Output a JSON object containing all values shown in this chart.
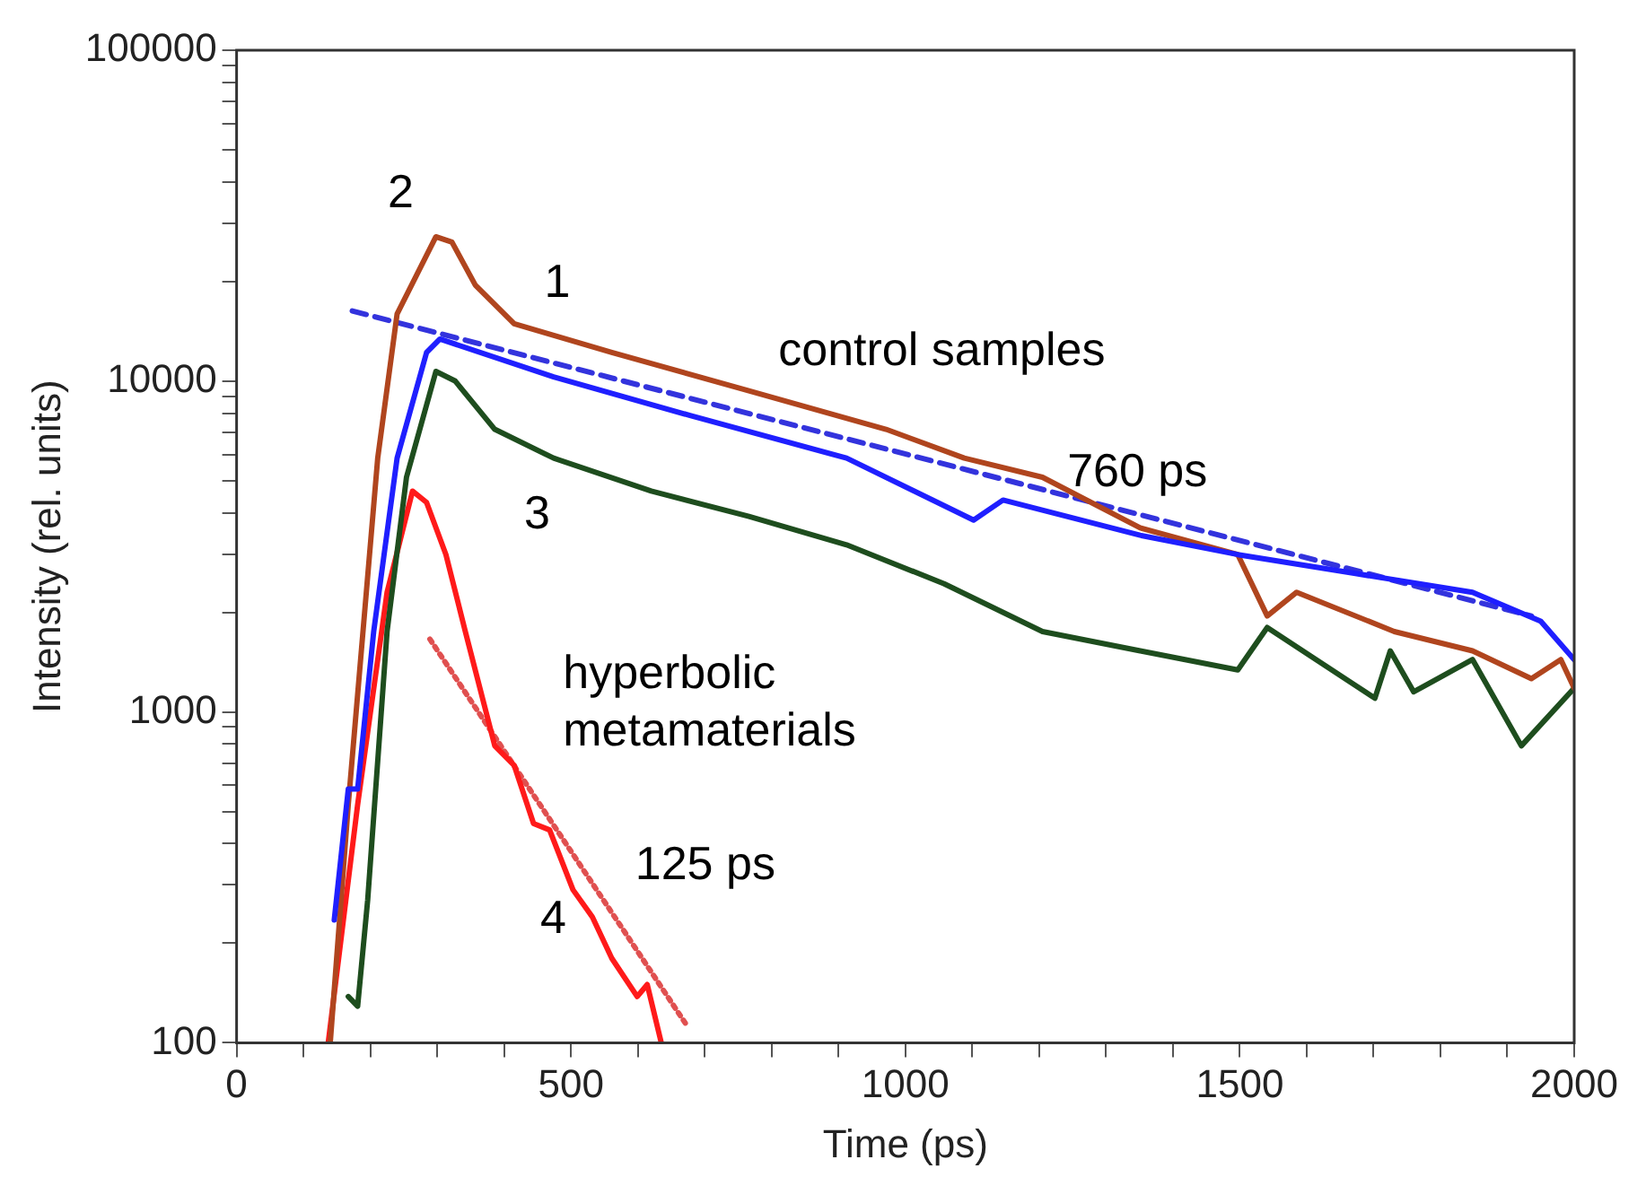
{
  "chart_data": {
    "type": "line",
    "xlabel": "Time (ps)",
    "ylabel": "Intensity (rel. units)",
    "log": "y",
    "grid": false,
    "legend": false,
    "marker": "none",
    "xlim": [
      0,
      2000
    ],
    "ylim": [
      100,
      100000
    ],
    "xticks": [
      0,
      {
        "value": 100,
        "label": null
      },
      {
        "value": 200,
        "label": null
      },
      {
        "value": 300,
        "label": null
      },
      {
        "value": 400,
        "label": null
      },
      500,
      {
        "value": 600,
        "label": null
      },
      {
        "value": 700,
        "label": null
      },
      {
        "value": 800,
        "label": null
      },
      {
        "value": 900,
        "label": null
      },
      1000,
      {
        "value": 1100,
        "label": null
      },
      {
        "value": 1200,
        "label": null
      },
      {
        "value": 1300,
        "label": null
      },
      {
        "value": 1400,
        "label": null
      },
      1500,
      {
        "value": 1600,
        "label": null
      },
      {
        "value": 1700,
        "label": null
      },
      {
        "value": 1800,
        "label": null
      },
      {
        "value": 1900,
        "label": null
      },
      2000
    ],
    "yticks": [
      100,
      {
        "value": 200,
        "label": null
      },
      {
        "value": 300,
        "label": null
      },
      {
        "value": 400,
        "label": null
      },
      {
        "value": 500,
        "label": null
      },
      {
        "value": 600,
        "label": null
      },
      {
        "value": 700,
        "label": null
      },
      {
        "value": 800,
        "label": null
      },
      {
        "value": 900,
        "label": null
      },
      1000,
      {
        "value": 2000,
        "label": null
      },
      {
        "value": 3000,
        "label": null
      },
      {
        "value": 4000,
        "label": null
      },
      {
        "value": 5000,
        "label": null
      },
      {
        "value": 6000,
        "label": null
      },
      {
        "value": 7000,
        "label": null
      },
      {
        "value": 8000,
        "label": null
      },
      {
        "value": 9000,
        "label": null
      },
      10000,
      {
        "value": 20000,
        "label": null
      },
      {
        "value": 30000,
        "label": null
      },
      {
        "value": 40000,
        "label": null
      },
      {
        "value": 50000,
        "label": null
      },
      {
        "value": 60000,
        "label": null
      },
      {
        "value": 70000,
        "label": null
      },
      {
        "value": 80000,
        "label": null
      },
      {
        "value": 90000,
        "label": null
      },
      100000
    ],
    "series": [
      {
        "color": "#1f1fff",
        "x": [
          146,
          167,
          181,
          205,
          240,
          284,
          304,
          474,
          678,
          912,
          1102,
          1146,
          1351,
          1497,
          1673,
          1848,
          1950,
          2000
        ],
        "values": [
          235,
          585,
          585,
          1750,
          5850,
          12200,
          13400,
          10300,
          7870,
          5850,
          3800,
          4370,
          3420,
          2990,
          2620,
          2300,
          1880,
          1440
        ]
      },
      {
        "color": "#b0451e",
        "x": [
          140,
          167,
          211,
          240,
          298,
          322,
          357,
          415,
          561,
          766,
          971,
          1088,
          1205,
          1351,
          1497,
          1541,
          1585,
          1731,
          1848,
          1936,
          1980,
          2000
        ],
        "values": [
          100,
          525,
          5850,
          15970,
          27300,
          26300,
          19500,
          14900,
          12200,
          9350,
          7150,
          5850,
          5120,
          3600,
          2990,
          1950,
          2300,
          1750,
          1530,
          1260,
          1440,
          1180
        ]
      },
      {
        "color": "#1e4d1e",
        "x": [
          167,
          181,
          196,
          225,
          254,
          298,
          327,
          386,
          474,
          620,
          766,
          912,
          1058,
          1205,
          1351,
          1497,
          1541,
          1614,
          1702,
          1725,
          1760,
          1848,
          1921,
          2000
        ],
        "values": [
          138,
          129,
          270,
          1750,
          5120,
          10700,
          10000,
          7150,
          5850,
          4650,
          3900,
          3200,
          2440,
          1750,
          1530,
          1340,
          1800,
          1440,
          1100,
          1530,
          1150,
          1440,
          790,
          1180
        ]
      },
      {
        "color": "#ff1a1a",
        "x": [
          137,
          181,
          225,
          263,
          284,
          313,
          342,
          386,
          415,
          444,
          468,
          503,
          532,
          561,
          599,
          614,
          635
        ],
        "values": [
          100,
          525,
          2300,
          4650,
          4300,
          2990,
          1750,
          790,
          690,
          460,
          440,
          290,
          240,
          180,
          138,
          150,
          100
        ]
      },
      {
        "color": "#3333dd",
        "line_style": "dashed",
        "x": [
          173,
          1936
        ],
        "values": [
          16300,
          1950
        ]
      },
      {
        "color": "#e05050",
        "line_style": "dotted",
        "x": [
          289,
          673
        ],
        "values": [
          1660,
          113
        ]
      }
    ],
    "annotations": [
      "2",
      "1",
      "3",
      "4",
      "control samples",
      "760 ps",
      "hyperbolic\nmetamaterials",
      "125 ps"
    ]
  }
}
